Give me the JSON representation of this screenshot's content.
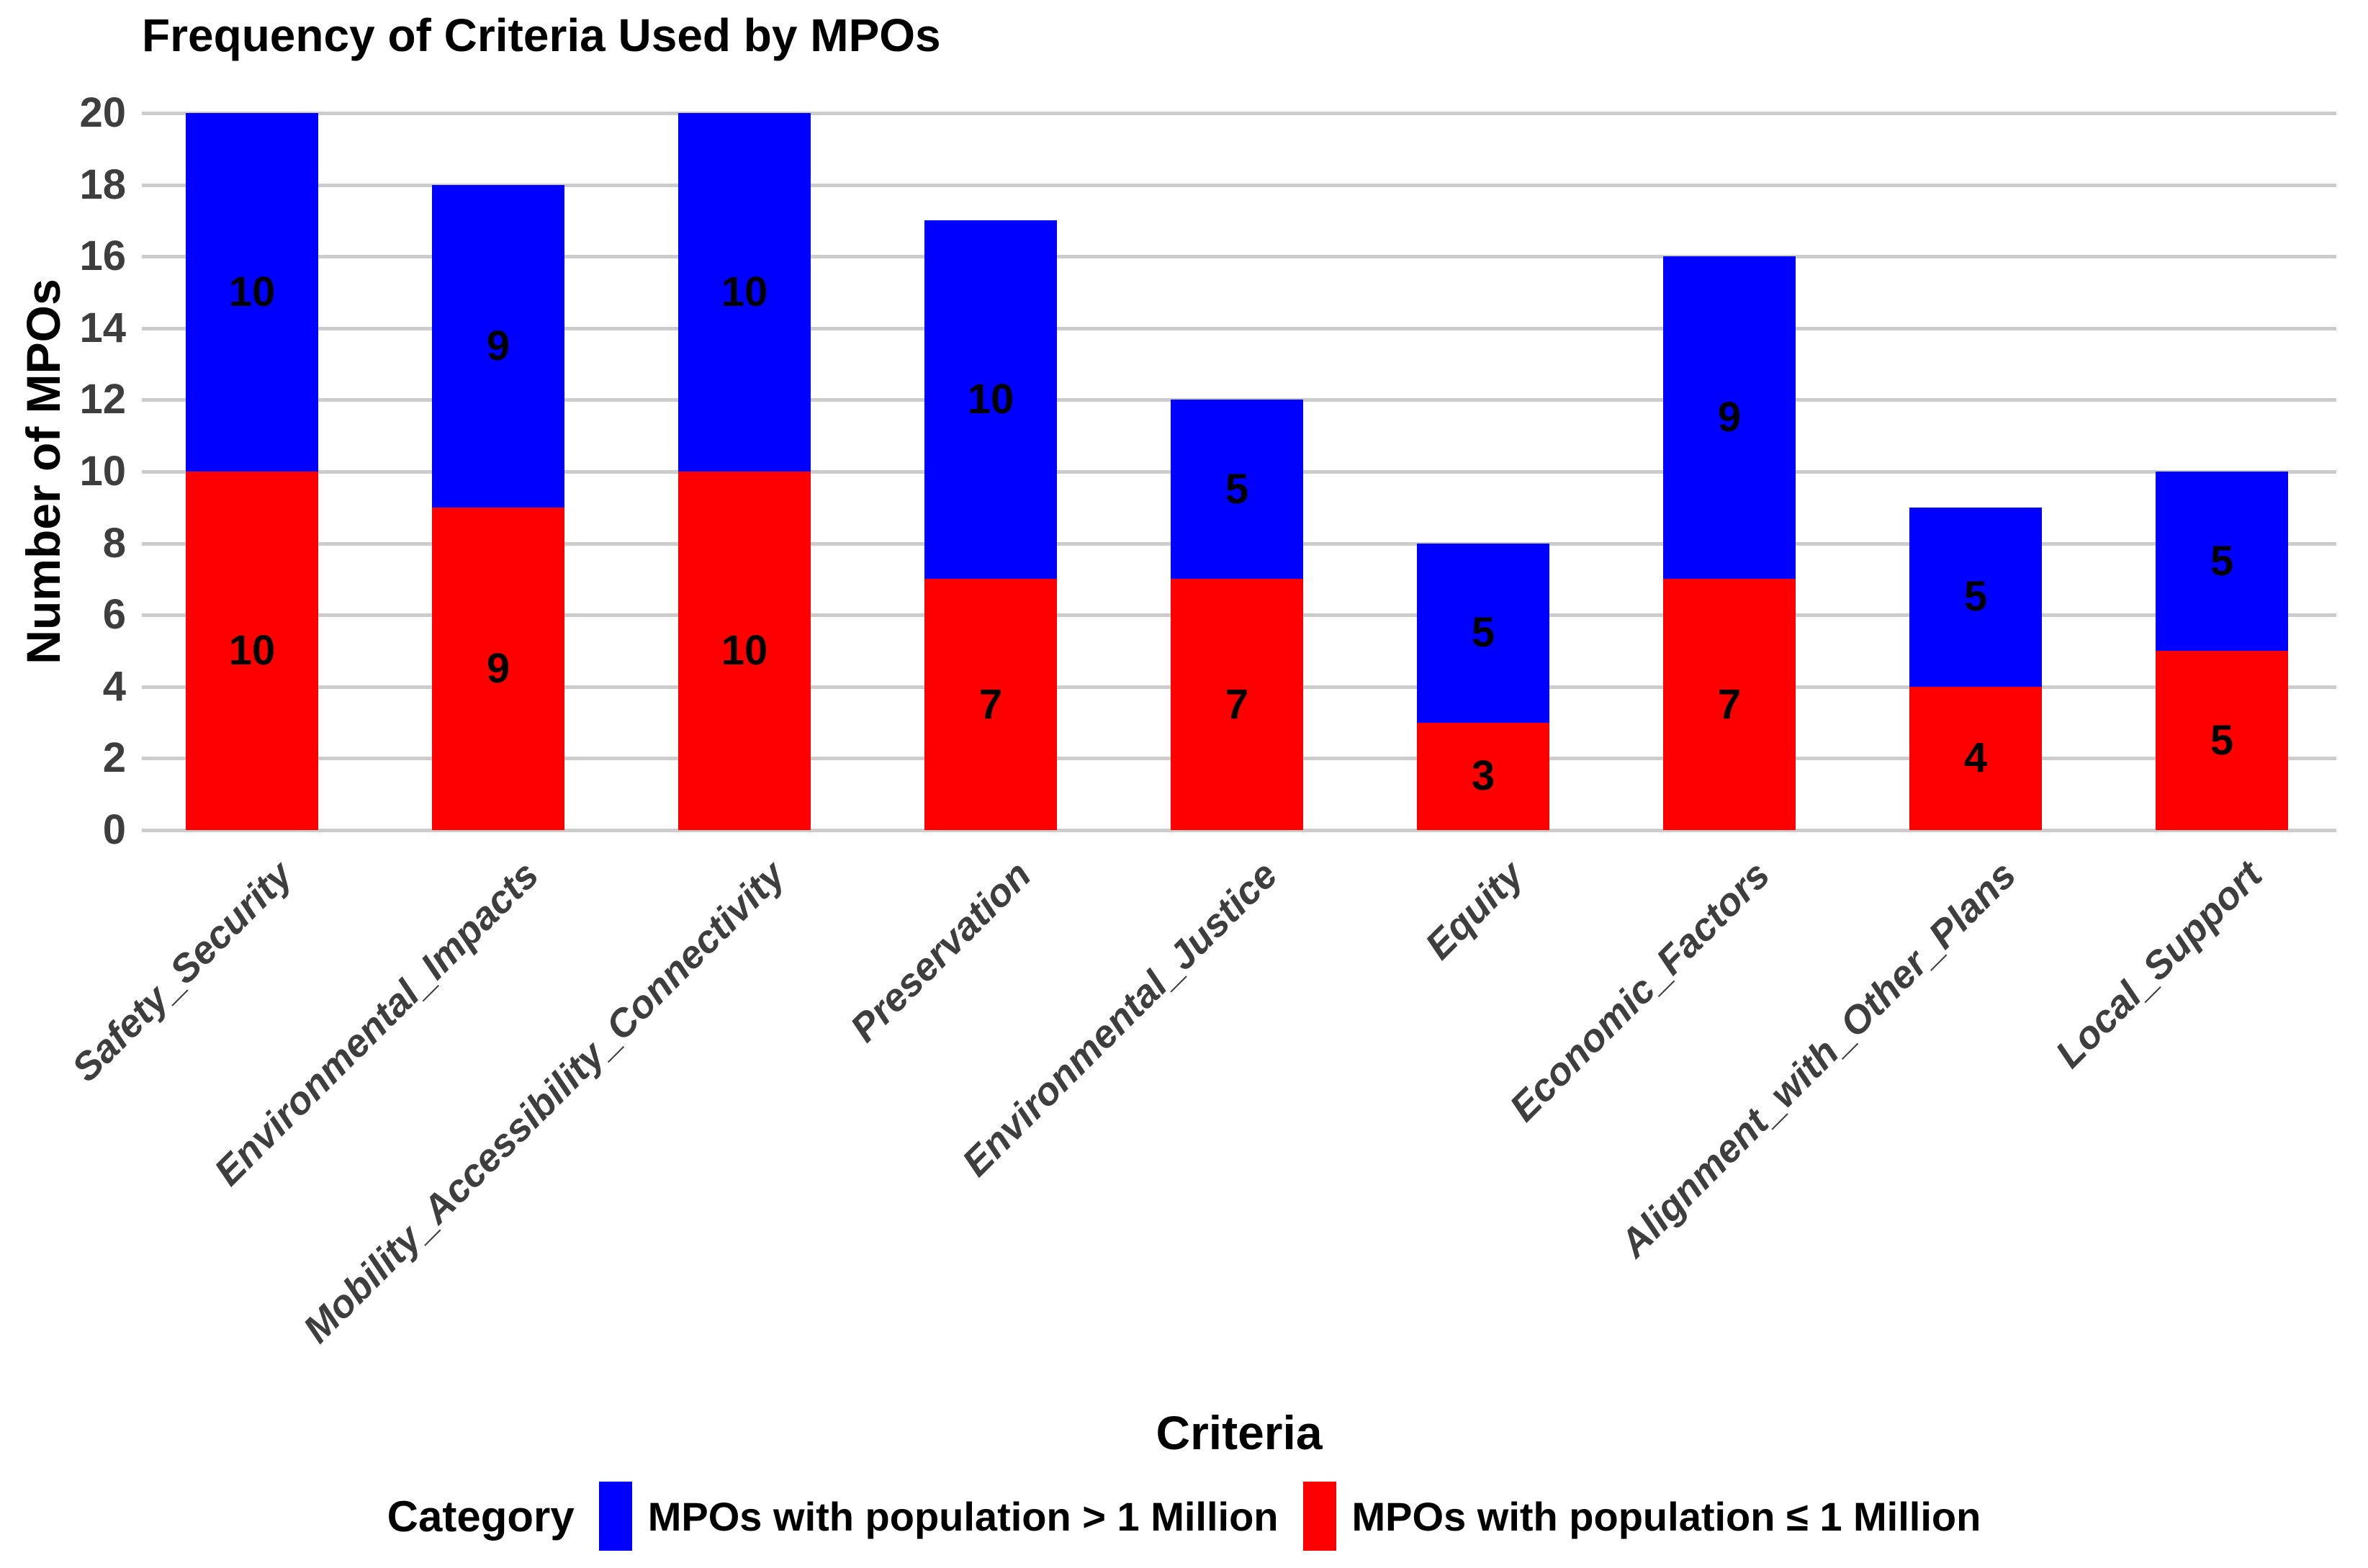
{
  "chart_data": {
    "type": "bar",
    "stacked": true,
    "title": "Frequency of Criteria Used by MPOs",
    "xlabel": "Criteria",
    "ylabel": "Number of MPOs",
    "legend_title": "Category",
    "legend_position": "bottom",
    "grid": "horizontal",
    "ylim": [
      0,
      20
    ],
    "yticks": [
      0,
      2,
      4,
      6,
      8,
      10,
      12,
      14,
      16,
      18,
      20
    ],
    "categories": [
      "Safety_Security",
      "Environmental_Impacts",
      "Mobility_Accessibility_Connectivity",
      "Preservation",
      "Environmental_Justice",
      "Equity",
      "Economic_Factors",
      "Alignment_with_Other_Plans",
      "Local_Support"
    ],
    "series": [
      {
        "name": "MPOs with population > 1 Million",
        "color": "#0000ff",
        "stack_position": "top",
        "values": [
          10,
          9,
          10,
          10,
          5,
          5,
          9,
          5,
          5
        ]
      },
      {
        "name": "MPOs with population ≤ 1 Million",
        "color": "#ff0000",
        "stack_position": "bottom",
        "values": [
          10,
          9,
          10,
          7,
          7,
          3,
          7,
          4,
          5
        ]
      }
    ],
    "bar_totals": [
      20,
      18,
      20,
      17,
      12,
      8,
      16,
      9,
      10
    ]
  },
  "style_colors": {
    "background": "#ffffff",
    "gridline": "#cccccc",
    "axis_text": "#3e3e3e",
    "title_text": "#000000",
    "value_label_text": "#000000"
  }
}
